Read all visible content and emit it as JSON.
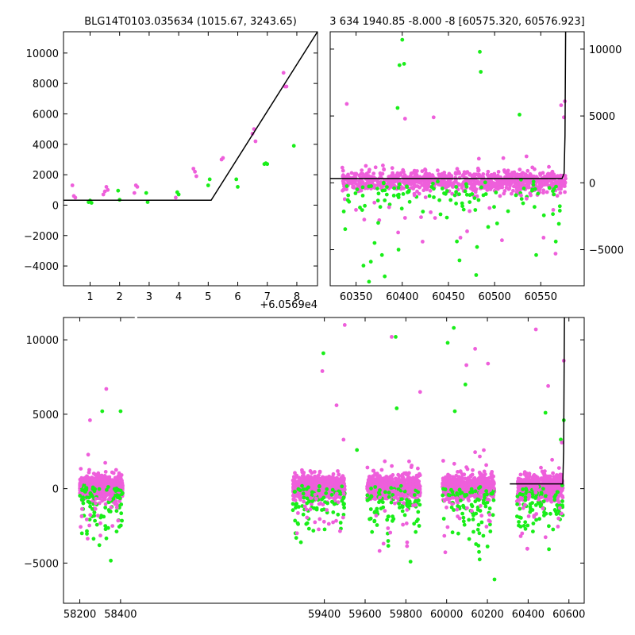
{
  "colors": {
    "magenta": "#ee5fdb",
    "green": "#19ee19",
    "line": "#000000",
    "background": "#ffffff"
  },
  "chart_data": [
    {
      "type": "scatter",
      "title": "BLG14T0103.035634 (1015.67, 3243.65)",
      "offset_label": "+6.0569e4",
      "xlim": [
        0.1,
        8.7
      ],
      "ylim": [
        -5300,
        11400
      ],
      "xticks": [
        1,
        2,
        3,
        4,
        5,
        6,
        7,
        8
      ],
      "yticks": [
        -4000,
        -2000,
        0,
        2000,
        4000,
        6000,
        8000,
        10000
      ],
      "series": [
        {
          "color": "magenta",
          "points": [
            [
              0.4,
              1300
            ],
            [
              0.45,
              600
            ],
            [
              0.5,
              500
            ],
            [
              1.45,
              700
            ],
            [
              1.5,
              900
            ],
            [
              1.55,
              1200
            ],
            [
              1.6,
              1000
            ],
            [
              2.5,
              800
            ],
            [
              2.55,
              1300
            ],
            [
              2.6,
              1200
            ],
            [
              3.9,
              500
            ],
            [
              4.5,
              2400
            ],
            [
              4.55,
              2200
            ],
            [
              4.6,
              1900
            ],
            [
              5.45,
              3000
            ],
            [
              5.5,
              3100
            ],
            [
              6.5,
              4700
            ],
            [
              6.55,
              5000
            ],
            [
              6.6,
              4200
            ],
            [
              7.55,
              8700
            ],
            [
              7.6,
              7800
            ],
            [
              7.65,
              7800
            ]
          ]
        },
        {
          "color": "green",
          "points": [
            [
              0.95,
              200
            ],
            [
              1.0,
              300
            ],
            [
              1.05,
              150
            ],
            [
              1.95,
              950
            ],
            [
              2.0,
              350
            ],
            [
              2.9,
              800
            ],
            [
              2.95,
              200
            ],
            [
              3.95,
              850
            ],
            [
              4.0,
              700
            ],
            [
              5.0,
              1300
            ],
            [
              5.05,
              1700
            ],
            [
              5.95,
              1700
            ],
            [
              6.0,
              1200
            ],
            [
              6.9,
              2700
            ],
            [
              6.95,
              2750
            ],
            [
              7.0,
              2700
            ],
            [
              7.9,
              3900
            ]
          ]
        }
      ],
      "model_line": [
        [
          0.1,
          320
        ],
        [
          5.1,
          320
        ],
        [
          8.7,
          11400
        ]
      ]
    },
    {
      "type": "scatter",
      "title": "3 634 1940.85 -8.000 -8 [60575.320, 60576.923]",
      "xlim": [
        60322,
        60597
      ],
      "ylim": [
        -7700,
        11300
      ],
      "xticks": [
        60350,
        60400,
        60450,
        60500,
        60550
      ],
      "yticks": [
        -5000,
        0,
        5000,
        10000
      ],
      "seasons": [
        [
          60335,
          60577
        ]
      ],
      "highlights": [
        {
          "color": "green",
          "points": [
            [
              60397,
              8800
            ],
            [
              60400,
              10700
            ],
            [
              60395,
              5600
            ],
            [
              60402,
              8900
            ],
            [
              60485,
              8300
            ],
            [
              60484,
              9800
            ],
            [
              60527,
              5100
            ],
            [
              60374,
              -3000
            ],
            [
              60364,
              -7400
            ],
            [
              60358,
              -6200
            ],
            [
              60366,
              -5900
            ],
            [
              60378,
              -5400
            ],
            [
              60381,
              -7000
            ],
            [
              60396,
              -5000
            ],
            [
              60462,
              -5800
            ],
            [
              60481,
              -4800
            ],
            [
              60493,
              -3300
            ],
            [
              60545,
              -5400
            ],
            [
              60370,
              -4500
            ],
            [
              60480,
              -6900
            ]
          ]
        },
        {
          "color": "magenta",
          "points": [
            [
              60340,
              5900
            ],
            [
              60403,
              4800
            ],
            [
              60434,
              4900
            ],
            [
              60422,
              -4400
            ],
            [
              60463,
              -4100
            ],
            [
              60508,
              -4300
            ],
            [
              60553,
              -4100
            ],
            [
              60566,
              -5300
            ],
            [
              60575,
              4900
            ],
            [
              60572,
              5800
            ],
            [
              60576,
              6100
            ]
          ]
        }
      ],
      "model_line": [
        [
          60322,
          320
        ],
        [
          60573,
          320
        ],
        [
          60575.3,
          700
        ],
        [
          60576.2,
          3500
        ],
        [
          60576.92,
          11300
        ]
      ]
    },
    {
      "type": "scatter",
      "title": "",
      "xlim": [
        58120,
        60675
      ],
      "ylim": [
        -7700,
        11500
      ],
      "xticks": [
        58200,
        58400,
        59400,
        59600,
        59800,
        60000,
        60200,
        60400,
        60600
      ],
      "yticks": [
        -5000,
        0,
        5000,
        10000
      ],
      "xbreak": [
        58470,
        59245
      ],
      "seasons": [
        [
          58200,
          58410
        ],
        [
          59245,
          59500
        ],
        [
          59610,
          59870
        ],
        [
          59980,
          60235
        ],
        [
          60345,
          60570
        ]
      ],
      "highlights": [
        {
          "color": "green",
          "points": [
            [
              58310,
              5200
            ],
            [
              58400,
              5200
            ],
            [
              59395,
              9100
            ],
            [
              59560,
              2600
            ],
            [
              59750,
              10200
            ],
            [
              59755,
              5400
            ],
            [
              60035,
              10800
            ],
            [
              60005,
              9800
            ],
            [
              60092,
              7000
            ],
            [
              60040,
              5200
            ],
            [
              60235,
              -6100
            ],
            [
              60485,
              5100
            ],
            [
              60575,
              4600
            ],
            [
              60560,
              3300
            ]
          ]
        },
        {
          "color": "magenta",
          "points": [
            [
              58330,
              6700
            ],
            [
              58250,
              4600
            ],
            [
              59390,
              7900
            ],
            [
              59460,
              5600
            ],
            [
              59500,
              11000
            ],
            [
              59730,
              10200
            ],
            [
              59870,
              6500
            ],
            [
              60097,
              8300
            ],
            [
              60140,
              9400
            ],
            [
              60203,
              8400
            ],
            [
              60438,
              10700
            ],
            [
              60498,
              6900
            ],
            [
              60575,
              8600
            ],
            [
              60565,
              3100
            ]
          ]
        }
      ],
      "model_line": [
        [
          60310,
          320
        ],
        [
          60570,
          320
        ],
        [
          60574,
          2500
        ],
        [
          60578,
          11500
        ]
      ]
    }
  ]
}
